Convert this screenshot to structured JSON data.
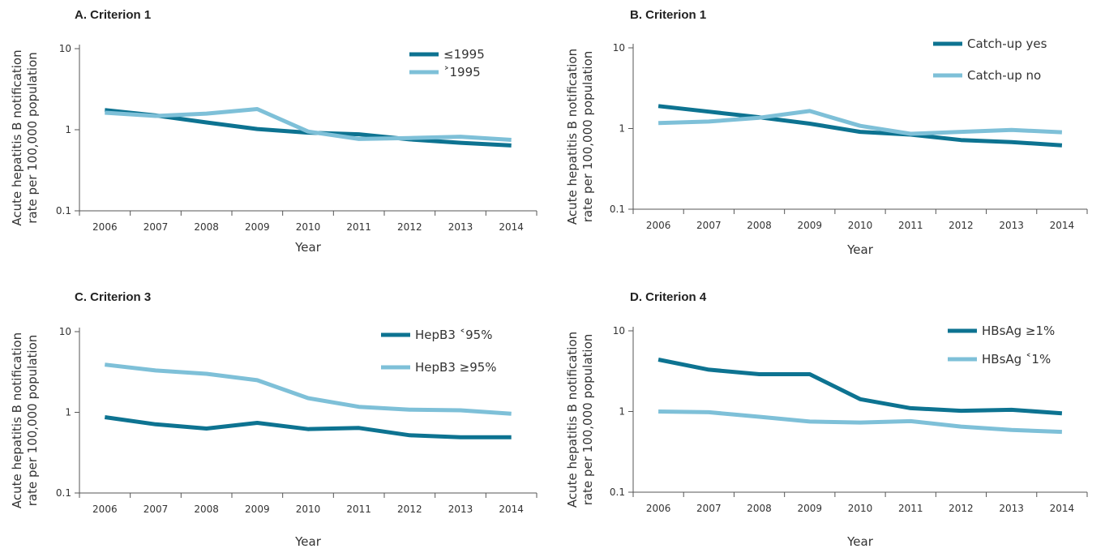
{
  "colors": {
    "dark": "#0d7391",
    "light": "#7ec0d8",
    "axis": "#555555"
  },
  "chart_data": [
    {
      "type": "line",
      "title": "A. Criterion 1",
      "xlabel": "Year",
      "ylabel": "Acute hepatitis B notification rate per 100,000 population",
      "yscale": "log",
      "ylim": [
        0.1,
        10
      ],
      "yticks": [
        "10",
        "1",
        "0.1"
      ],
      "categories": [
        "2006",
        "2007",
        "2008",
        "2009",
        "2010",
        "2011",
        "2012",
        "2013",
        "2014"
      ],
      "legend_position": "top-right",
      "series": [
        {
          "name": "≤1995",
          "color": "#0d7391",
          "values": [
            1.75,
            1.5,
            1.23,
            1.02,
            0.92,
            0.88,
            0.76,
            0.69,
            0.64
          ]
        },
        {
          "name": "˃1995",
          "color": "#7ec0d8",
          "values": [
            1.62,
            1.48,
            1.58,
            1.8,
            0.95,
            0.77,
            0.79,
            0.82,
            0.75
          ]
        }
      ]
    },
    {
      "type": "line",
      "title": "B. Criterion 1",
      "xlabel": "Year",
      "ylabel": "Acute hepatitis B notification rate per 100,000 population",
      "yscale": "log",
      "ylim": [
        0.1,
        10
      ],
      "yticks": [
        "10",
        "1",
        "0.1"
      ],
      "categories": [
        "2006",
        "2007",
        "2008",
        "2009",
        "2010",
        "2011",
        "2012",
        "2013",
        "2014"
      ],
      "legend_position": "top-right",
      "series": [
        {
          "name": "Catch-up yes",
          "color": "#0d7391",
          "values": [
            1.9,
            1.62,
            1.38,
            1.15,
            0.91,
            0.84,
            0.72,
            0.68,
            0.62
          ]
        },
        {
          "name": "Catch-up no",
          "color": "#7ec0d8",
          "values": [
            1.17,
            1.22,
            1.36,
            1.65,
            1.08,
            0.86,
            0.91,
            0.96,
            0.9
          ]
        }
      ]
    },
    {
      "type": "line",
      "title": "C. Criterion 3",
      "xlabel": "Year",
      "ylabel": "Acute hepatitis B notification rate per 100,000 population",
      "yscale": "log",
      "ylim": [
        0.1,
        10
      ],
      "yticks": [
        "10",
        "1",
        "0.1"
      ],
      "categories": [
        "2006",
        "2007",
        "2008",
        "2009",
        "2010",
        "2011",
        "2012",
        "2013",
        "2014"
      ],
      "legend_position": "top-right",
      "series": [
        {
          "name": "HepB3 ˂95%",
          "color": "#0d7391",
          "values": [
            0.87,
            0.71,
            0.63,
            0.74,
            0.62,
            0.64,
            0.52,
            0.49,
            0.49
          ]
        },
        {
          "name": "HepB3 ≥95%",
          "color": "#7ec0d8",
          "values": [
            3.9,
            3.3,
            3.0,
            2.5,
            1.5,
            1.17,
            1.08,
            1.06,
            0.96
          ]
        }
      ]
    },
    {
      "type": "line",
      "title": "D. Criterion 4",
      "xlabel": "Year",
      "ylabel": "Acute hepatitis B notification rate per 100,000 population",
      "yscale": "log",
      "ylim": [
        0.1,
        10
      ],
      "yticks": [
        "10",
        "1",
        "0.1"
      ],
      "categories": [
        "2006",
        "2007",
        "2008",
        "2009",
        "2010",
        "2011",
        "2012",
        "2013",
        "2014"
      ],
      "legend_position": "top-right",
      "series": [
        {
          "name": "HBsAg ≥1%",
          "color": "#0d7391",
          "values": [
            4.4,
            3.3,
            2.9,
            2.9,
            1.42,
            1.1,
            1.02,
            1.05,
            0.95
          ]
        },
        {
          "name": "HBsAg ˂1%",
          "color": "#7ec0d8",
          "values": [
            1.0,
            0.98,
            0.86,
            0.75,
            0.73,
            0.76,
            0.65,
            0.59,
            0.56
          ]
        }
      ]
    }
  ]
}
